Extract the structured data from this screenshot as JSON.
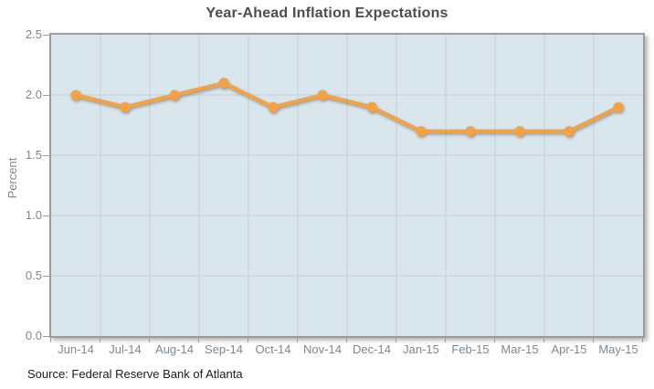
{
  "chart_data": {
    "type": "line",
    "title": "Year-Ahead Inflation Expectations",
    "categories": [
      "Jun-14",
      "Jul-14",
      "Aug-14",
      "Sep-14",
      "Oct-14",
      "Nov-14",
      "Dec-14",
      "Jan-15",
      "Feb-15",
      "Mar-15",
      "Apr-15",
      "May-15"
    ],
    "values": [
      2.0,
      1.9,
      2.0,
      2.1,
      1.9,
      2.0,
      1.9,
      1.7,
      1.7,
      1.7,
      1.7,
      1.9
    ],
    "xlabel": "",
    "ylabel": "Percent",
    "ylim": [
      0.0,
      2.5
    ],
    "y_ticks": [
      0.0,
      0.5,
      1.0,
      1.5,
      2.0,
      2.5
    ],
    "y_tick_labels": [
      "0.0",
      "0.5",
      "1.0",
      "1.5",
      "2.0",
      "2.5"
    ],
    "grid": "on",
    "legend": "none",
    "colors": {
      "line": "#f6a242",
      "marker": "#f6a242",
      "plot_background": "#d9e6ec",
      "gridline": "#c5cfd5",
      "border": "#9c9c9c",
      "title_text": "#4d4d4d",
      "axis_text": "#7b8893",
      "source_text": "#1a1a1a"
    }
  },
  "footer": {
    "source": "Source: Federal Reserve Bank of Atlanta"
  }
}
